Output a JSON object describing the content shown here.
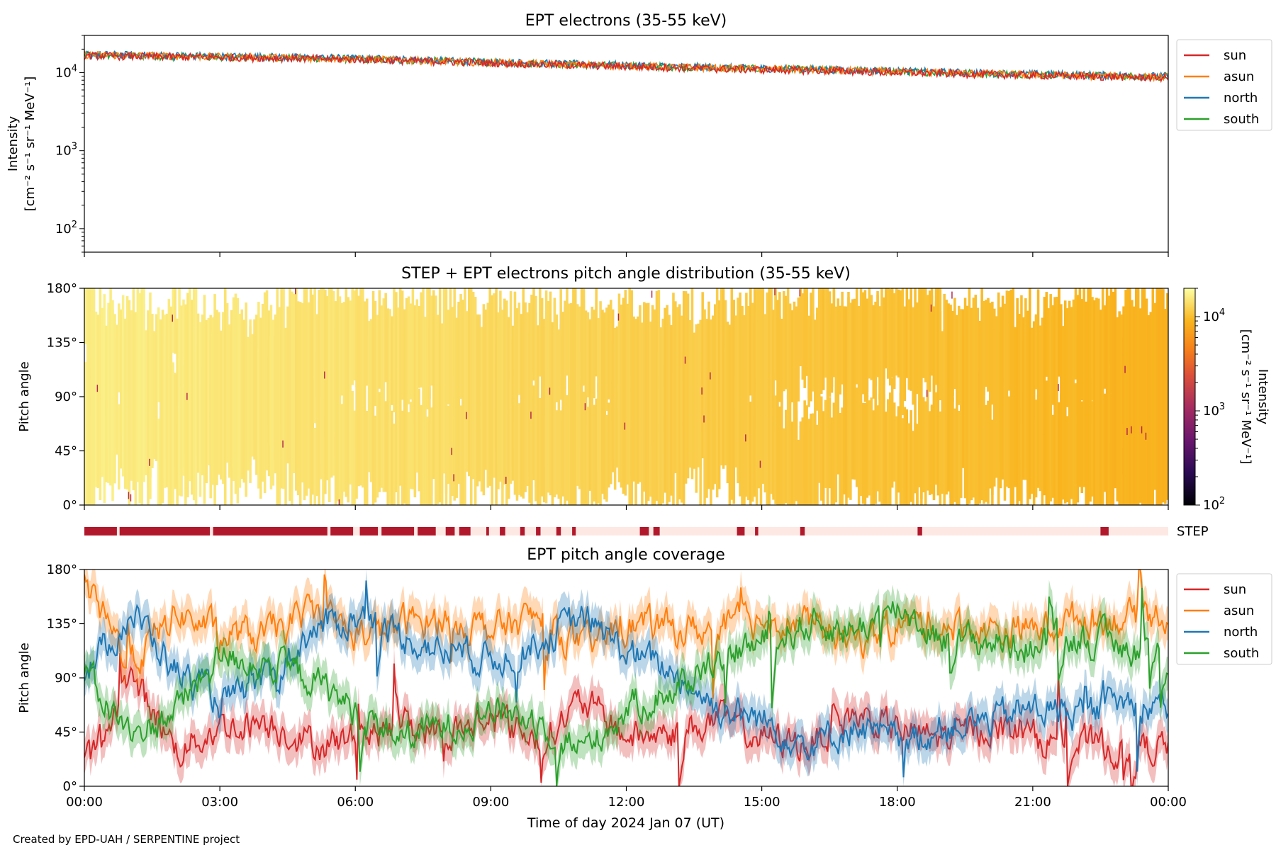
{
  "figure": {
    "footer": "Created by EPD-UAH / SERPENTINE project",
    "xlabel": "Time of day 2024 Jan 07 (UT)",
    "xticks": [
      "00:00",
      "03:00",
      "06:00",
      "09:00",
      "12:00",
      "15:00",
      "18:00",
      "21:00",
      "00:00"
    ]
  },
  "chart_data": [
    {
      "type": "line",
      "title": "EPT electrons (35-55 keV)",
      "ylabel_line1": "Intensity",
      "ylabel_line2": "[cm⁻² s⁻¹ sr⁻¹ MeV⁻¹]",
      "yscale": "log",
      "ylim": [
        50,
        30000
      ],
      "yticks": [
        {
          "value": 100,
          "base": "10",
          "exp": "2"
        },
        {
          "value": 1000,
          "base": "10",
          "exp": "3"
        },
        {
          "value": 10000,
          "base": "10",
          "exp": "4"
        }
      ],
      "x_hours": [
        0,
        2,
        4,
        6,
        8,
        10,
        12,
        14,
        16,
        18,
        20,
        22,
        24
      ],
      "series": [
        {
          "name": "sun",
          "color": "#d62728",
          "values": [
            16500,
            16000,
            15500,
            14800,
            13800,
            12800,
            12000,
            11200,
            10700,
            10100,
            9500,
            9000,
            8600
          ]
        },
        {
          "name": "asun",
          "color": "#ff7f0e",
          "values": [
            17000,
            16300,
            15800,
            15000,
            14000,
            13000,
            12200,
            11400,
            10900,
            10300,
            9700,
            9200,
            8800
          ]
        },
        {
          "name": "north",
          "color": "#1f77b4",
          "values": [
            17200,
            16600,
            16000,
            15300,
            14300,
            13300,
            12500,
            11700,
            11100,
            10500,
            9900,
            9400,
            9000
          ]
        },
        {
          "name": "south",
          "color": "#2ca02c",
          "values": [
            16800,
            16200,
            15700,
            15000,
            14100,
            13100,
            12300,
            11500,
            11000,
            10400,
            9800,
            9300,
            8900
          ]
        }
      ],
      "legend": "outside-right"
    },
    {
      "type": "heatmap",
      "title": "STEP + EPT electrons pitch angle distribution (35-55 keV)",
      "ylabel": "Pitch angle",
      "ylim": [
        0,
        180
      ],
      "yticks": [
        "0°",
        "45°",
        "90°",
        "135°",
        "180°"
      ],
      "colorbar": {
        "label_line1": "Intensity",
        "label_line2": "[cm⁻² s⁻¹ sr⁻¹ MeV⁻¹]",
        "scale": "log",
        "range": [
          100,
          20000
        ],
        "ticks": [
          {
            "value": 100,
            "base": "10",
            "exp": "2"
          },
          {
            "value": 1000,
            "base": "10",
            "exp": "3"
          },
          {
            "value": 10000,
            "base": "10",
            "exp": "4"
          }
        ],
        "colormap": "inferno"
      },
      "x_hours": [
        0,
        3,
        6,
        9,
        12,
        15,
        18,
        21,
        24
      ],
      "intensity": [
        16500,
        15500,
        14500,
        13300,
        12000,
        11000,
        10200,
        9400,
        8600
      ]
    },
    {
      "type": "bar",
      "label": "STEP",
      "on_color": "#b2182b",
      "off_color": "#fde8e4",
      "segments_hours": [
        [
          0.0,
          0.72
        ],
        [
          0.78,
          2.78
        ],
        [
          2.85,
          5.38
        ],
        [
          5.45,
          5.95
        ],
        [
          6.1,
          6.5
        ],
        [
          6.58,
          7.3
        ],
        [
          7.38,
          7.78
        ],
        [
          8.0,
          8.2
        ],
        [
          8.3,
          8.55
        ],
        [
          8.9,
          8.96
        ],
        [
          9.2,
          9.32
        ],
        [
          9.65,
          9.75
        ],
        [
          10.0,
          10.1
        ],
        [
          10.45,
          10.55
        ],
        [
          10.8,
          10.88
        ],
        [
          12.3,
          12.5
        ],
        [
          12.6,
          12.74
        ],
        [
          14.45,
          14.62
        ],
        [
          14.85,
          14.92
        ],
        [
          15.85,
          15.95
        ],
        [
          18.45,
          18.55
        ],
        [
          22.5,
          22.68
        ]
      ]
    },
    {
      "type": "line",
      "title": "EPT pitch angle coverage",
      "ylabel": "Pitch angle",
      "ylim": [
        0,
        180
      ],
      "yticks": [
        "0°",
        "45°",
        "90°",
        "135°",
        "180°"
      ],
      "x_hours": [
        0,
        1,
        2,
        3,
        4,
        5,
        6,
        7,
        8,
        9,
        10,
        11,
        12,
        13,
        14,
        15,
        16,
        17,
        18,
        19,
        20,
        21,
        22,
        23,
        24
      ],
      "series": [
        {
          "name": "sun",
          "color": "#d62728",
          "values": [
            15,
            90,
            30,
            50,
            55,
            35,
            40,
            50,
            45,
            55,
            40,
            70,
            40,
            45,
            55,
            40,
            35,
            60,
            45,
            40,
            50,
            40,
            35,
            30,
            35
          ]
        },
        {
          "name": "asun",
          "color": "#ff7f0e",
          "values": [
            165,
            100,
            145,
            125,
            125,
            145,
            125,
            135,
            140,
            130,
            140,
            115,
            135,
            130,
            130,
            140,
            135,
            120,
            135,
            135,
            130,
            130,
            140,
            140,
            145
          ]
        },
        {
          "name": "north",
          "color": "#1f77b4",
          "values": [
            95,
            145,
            95,
            70,
            85,
            130,
            140,
            125,
            110,
            105,
            120,
            140,
            110,
            95,
            65,
            55,
            35,
            50,
            35,
            50,
            55,
            65,
            60,
            70,
            70
          ]
        },
        {
          "name": "south",
          "color": "#2ca02c",
          "values": [
            90,
            40,
            65,
            110,
            100,
            90,
            60,
            40,
            50,
            65,
            55,
            30,
            65,
            80,
            110,
            120,
            135,
            130,
            150,
            120,
            120,
            115,
            125,
            115,
            110
          ]
        }
      ],
      "legend": "outside-right"
    }
  ]
}
